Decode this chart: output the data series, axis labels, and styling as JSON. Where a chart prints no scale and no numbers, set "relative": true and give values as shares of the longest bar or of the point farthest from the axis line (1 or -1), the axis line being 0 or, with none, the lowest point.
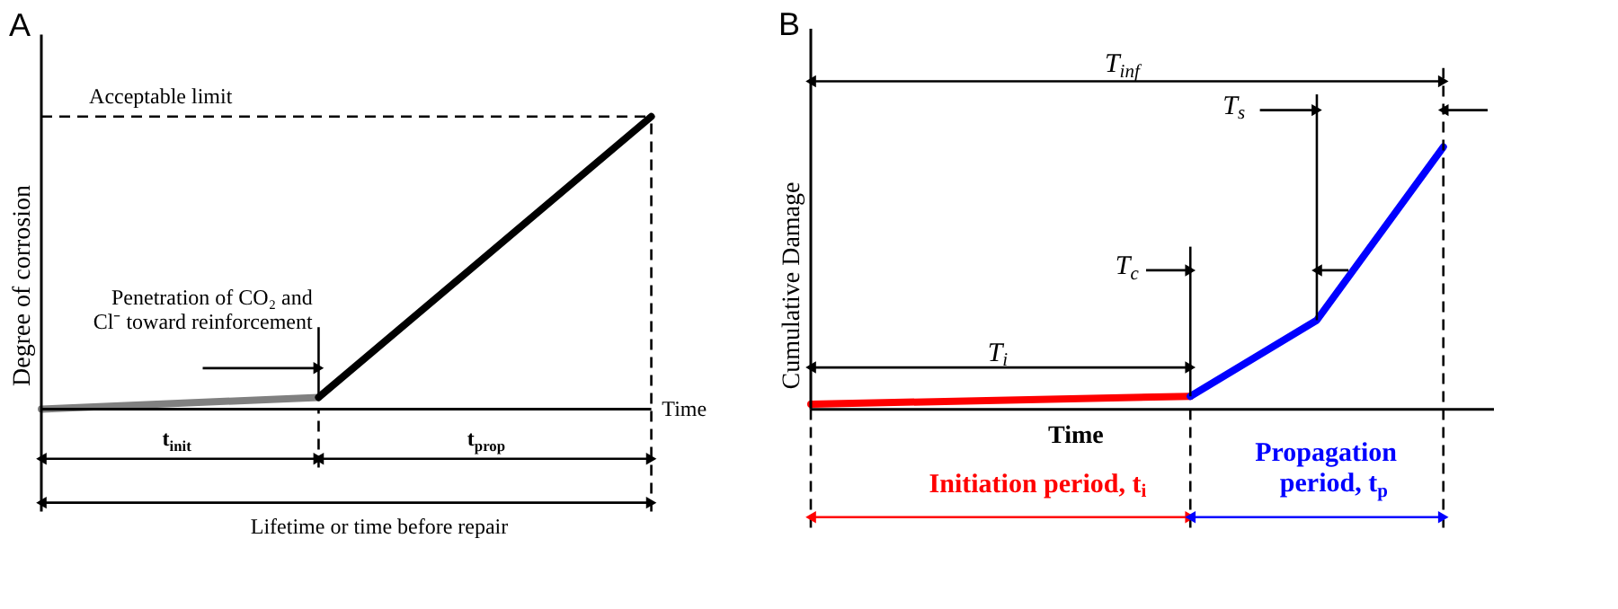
{
  "chart_data": [
    {
      "type": "line",
      "title": "A",
      "ylabel": "Degree of corrosion",
      "xlabel": "Time",
      "relative": true,
      "tick_labels": false,
      "categories": [
        null,
        null,
        null,
        null,
        null,
        null,
        null,
        null,
        null,
        null,
        null,
        null
      ],
      "series": [
        {
          "color": "#808080",
          "values": [
            0,
            null,
            null,
            null,
            null,
            0.04,
            null,
            null,
            null,
            null,
            null,
            null
          ]
        },
        {
          "color": "#000000",
          "values": [
            null,
            null,
            null,
            null,
            null,
            0.04,
            null,
            null,
            null,
            null,
            null,
            1
          ]
        }
      ],
      "ref_lines": [
        {
          "axis": "y",
          "value": 1,
          "label": "Acceptable limit",
          "color": "#000000",
          "line_style": "dashed"
        }
      ],
      "annotations": [
        "Penetration of CO₂ and\nCl⁻ toward reinforcement",
        "t$_{init}$",
        "t$_{prop}$",
        "Lifetime or time before repair"
      ]
    },
    {
      "type": "line",
      "title": "B",
      "ylabel": "Cumulative Damage",
      "xlabel": "Time",
      "relative": true,
      "tick_labels": false,
      "categories": [
        null,
        null,
        null,
        null,
        null,
        null
      ],
      "series": [
        {
          "color": "#ff0000",
          "values": [
            0.02,
            null,
            null,
            0.05,
            null,
            null
          ]
        },
        {
          "color": "#0000ff",
          "values": [
            null,
            null,
            null,
            0.05,
            0.34,
            1
          ]
        }
      ],
      "annotations": [
        "T$_{inf}$",
        "T$_{s}$",
        "T$_{c}$",
        "T$_{i}$",
        "Initiation period, t$_{i}$",
        "Propagation\nperiod, t$_{p}$"
      ]
    }
  ]
}
